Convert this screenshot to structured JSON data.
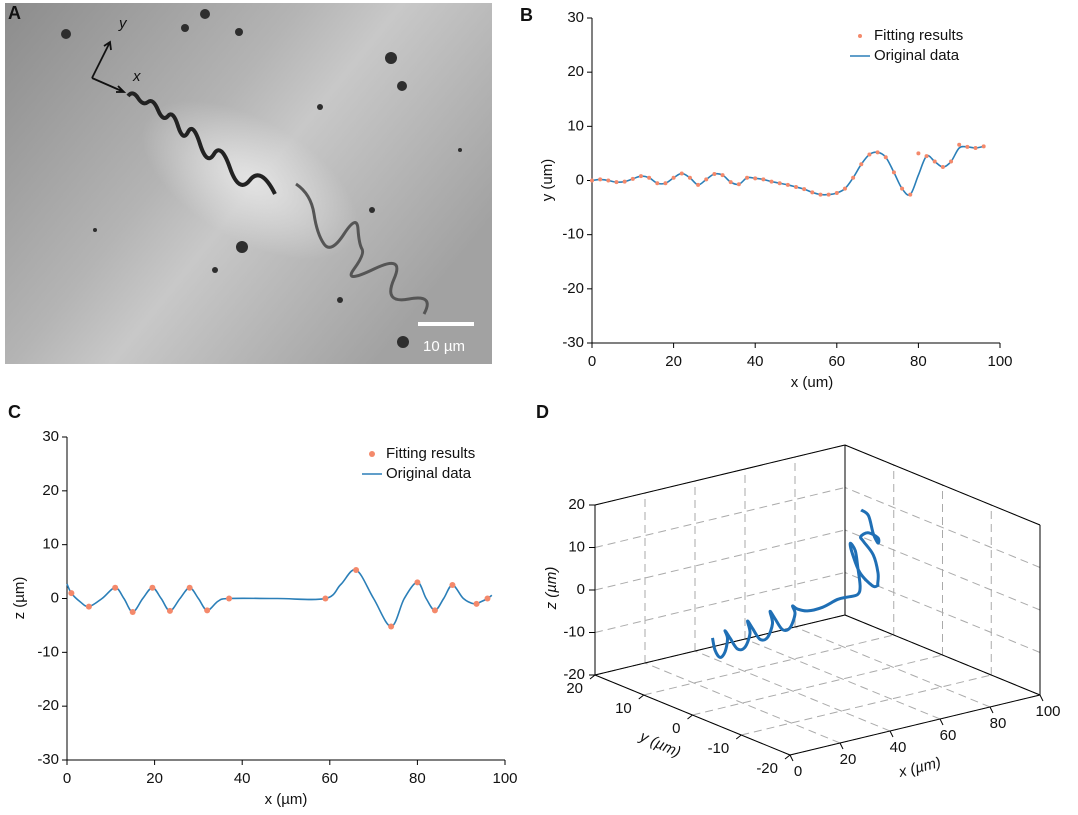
{
  "panel_a": {
    "label": "A",
    "x_arrow": "x",
    "y_arrow": "y",
    "scale_bar": "10 µm"
  },
  "chart_data": [
    {
      "type": "line",
      "label": "B",
      "xlabel": "x (um)",
      "ylabel": "y (um)",
      "xlim": [
        0,
        100
      ],
      "xticks": [
        0,
        20,
        40,
        60,
        80,
        100
      ],
      "ylim": [
        -30,
        30
      ],
      "yticks": [
        -30,
        -20,
        -10,
        0,
        10,
        20,
        30
      ],
      "legend": "upper right",
      "series": [
        {
          "name": "Fitting results",
          "mode": "markers",
          "color": "#f4896b",
          "x": [
            0,
            2,
            4,
            6,
            8,
            10,
            12,
            14,
            16,
            18,
            20,
            22,
            24,
            26,
            28,
            30,
            32,
            34,
            36,
            38,
            40,
            42,
            44,
            46,
            48,
            50,
            52,
            54,
            56,
            58,
            60,
            62,
            64,
            66,
            68,
            70,
            72,
            74,
            76,
            78,
            80,
            82,
            84,
            86,
            88,
            90,
            92,
            94,
            96
          ],
          "values": [
            0,
            0.2,
            0,
            -0.3,
            -0.2,
            0.3,
            0.8,
            0.5,
            -0.5,
            -0.5,
            0.5,
            1.3,
            0.5,
            -0.8,
            0.2,
            1.2,
            1.0,
            -0.3,
            -0.7,
            0.5,
            0.4,
            0.2,
            -0.2,
            -0.5,
            -0.8,
            -1.2,
            -1.6,
            -2.2,
            -2.6,
            -2.6,
            -2.3,
            -1.5,
            0.5,
            3.0,
            4.8,
            5.2,
            4.3,
            1.5,
            -1.5,
            -2.6,
            5.0,
            4.5,
            3.5,
            2.5,
            3.5,
            6.6,
            6.2,
            6.0,
            6.3
          ]
        },
        {
          "name": "Original data",
          "mode": "line",
          "color": "#2b7fb8",
          "x": [
            0,
            2,
            4,
            6,
            8,
            10,
            12,
            14,
            16,
            18,
            20,
            22,
            24,
            26,
            28,
            30,
            32,
            34,
            36,
            38,
            40,
            42,
            44,
            46,
            48,
            50,
            52,
            54,
            56,
            58,
            60,
            62,
            64,
            66,
            68,
            70,
            72,
            74,
            76,
            78,
            80,
            82,
            84,
            86,
            88,
            90,
            92,
            94,
            96
          ],
          "values": [
            0,
            0.2,
            0,
            -0.3,
            -0.2,
            0.3,
            0.8,
            0.5,
            -0.5,
            -0.5,
            0.5,
            1.3,
            0.5,
            -0.8,
            0.2,
            1.2,
            1.0,
            -0.3,
            -0.7,
            0.5,
            0.4,
            0.2,
            -0.2,
            -0.5,
            -0.8,
            -1.2,
            -1.6,
            -2.2,
            -2.6,
            -2.6,
            -2.3,
            -1.5,
            0.5,
            3.0,
            4.8,
            5.2,
            4.3,
            1.5,
            -1.5,
            -2.6,
            1.0,
            4.5,
            3.5,
            2.5,
            3.5,
            6.0,
            6.2,
            6.0,
            6.3
          ]
        }
      ]
    },
    {
      "type": "line",
      "label": "C",
      "xlabel": "x (µm)",
      "ylabel": "z (µm)",
      "xlim": [
        0,
        100
      ],
      "xticks": [
        0,
        20,
        40,
        60,
        80,
        100
      ],
      "ylim": [
        -30,
        30
      ],
      "yticks": [
        -30,
        -20,
        -10,
        0,
        10,
        20,
        30
      ],
      "legend": "upper right",
      "series": [
        {
          "name": "Fitting results",
          "mode": "markers",
          "color": "#f4896b",
          "x": [
            1,
            5,
            11,
            15,
            19.5,
            23.5,
            28,
            32,
            37,
            59,
            66,
            74,
            80,
            84,
            88,
            93.5,
            96
          ],
          "values": [
            1,
            -1.5,
            2,
            -2.5,
            2,
            -2.3,
            2,
            -2.2,
            0,
            0,
            5.3,
            -5.2,
            3,
            -2.2,
            2.5,
            -1,
            0
          ]
        },
        {
          "name": "Original data",
          "mode": "line",
          "color": "#2b7fb8",
          "x": [
            0,
            1,
            3,
            5,
            8,
            11,
            13,
            15,
            17.3,
            19.5,
            21.5,
            23.5,
            25.8,
            28,
            30,
            32,
            34.5,
            37,
            48,
            59,
            62.5,
            66,
            70,
            74,
            77,
            80,
            82,
            84,
            86,
            88,
            90.5,
            93,
            94.5,
            96,
            97
          ],
          "values": [
            2.7,
            1,
            -0.6,
            -1.5,
            0,
            2,
            0,
            -2.5,
            0,
            2,
            0,
            -2.3,
            0,
            2,
            0,
            -2.2,
            -0.5,
            0,
            0,
            0,
            2.6,
            5.3,
            0,
            -5.2,
            0,
            3,
            0,
            -2.2,
            0,
            2.5,
            0,
            -1,
            -0.6,
            0,
            0.6
          ]
        }
      ]
    },
    {
      "type": "line3d",
      "label": "D",
      "xlabel": "x (µm)",
      "ylabel": "y (µm)",
      "zlabel": "z (µm)",
      "xlim": [
        0,
        100
      ],
      "xticks": [
        0,
        20,
        40,
        60,
        80,
        100
      ],
      "ylim": [
        -20,
        20
      ],
      "yticks": [
        -20,
        -10,
        0,
        10,
        20
      ],
      "zlim": [
        -20,
        20
      ],
      "zticks": [
        -20,
        -10,
        0,
        10,
        20
      ],
      "grid": true,
      "series": [
        {
          "color": "#1f6fb5",
          "x": [
            8,
            9,
            11,
            13,
            14,
            13,
            15,
            18,
            21,
            23,
            22,
            24,
            27,
            30,
            32,
            31,
            33,
            36,
            39,
            41,
            40,
            42,
            46,
            52,
            58,
            62,
            66,
            69,
            70,
            69,
            67,
            66,
            67,
            70,
            74,
            78,
            82,
            84,
            82,
            79,
            78,
            80,
            82,
            84,
            86,
            85
          ],
          "y": [
            0,
            0,
            0,
            0,
            0,
            0,
            0,
            0,
            0,
            0,
            0,
            0,
            0,
            0,
            0,
            0,
            0,
            0,
            0,
            0,
            0,
            0,
            0,
            0,
            0,
            0,
            0,
            1,
            2,
            2,
            2,
            1,
            0,
            -1,
            0,
            2,
            4,
            6,
            7,
            6,
            4,
            3,
            4,
            6,
            8,
            9
          ],
          "z": [
            -3,
            -6,
            -8,
            -7,
            -4,
            -2,
            -4,
            -7,
            -7,
            -4,
            -1,
            -3,
            -6,
            -6,
            -3,
            0,
            -2,
            -5,
            -5,
            -2,
            0,
            -1,
            -2,
            -2,
            -1,
            -1,
            -1,
            0,
            4,
            8,
            10,
            8,
            4,
            1,
            0,
            -1,
            0,
            3,
            6,
            8,
            10,
            9,
            7,
            8,
            11,
            12
          ]
        }
      ]
    }
  ]
}
